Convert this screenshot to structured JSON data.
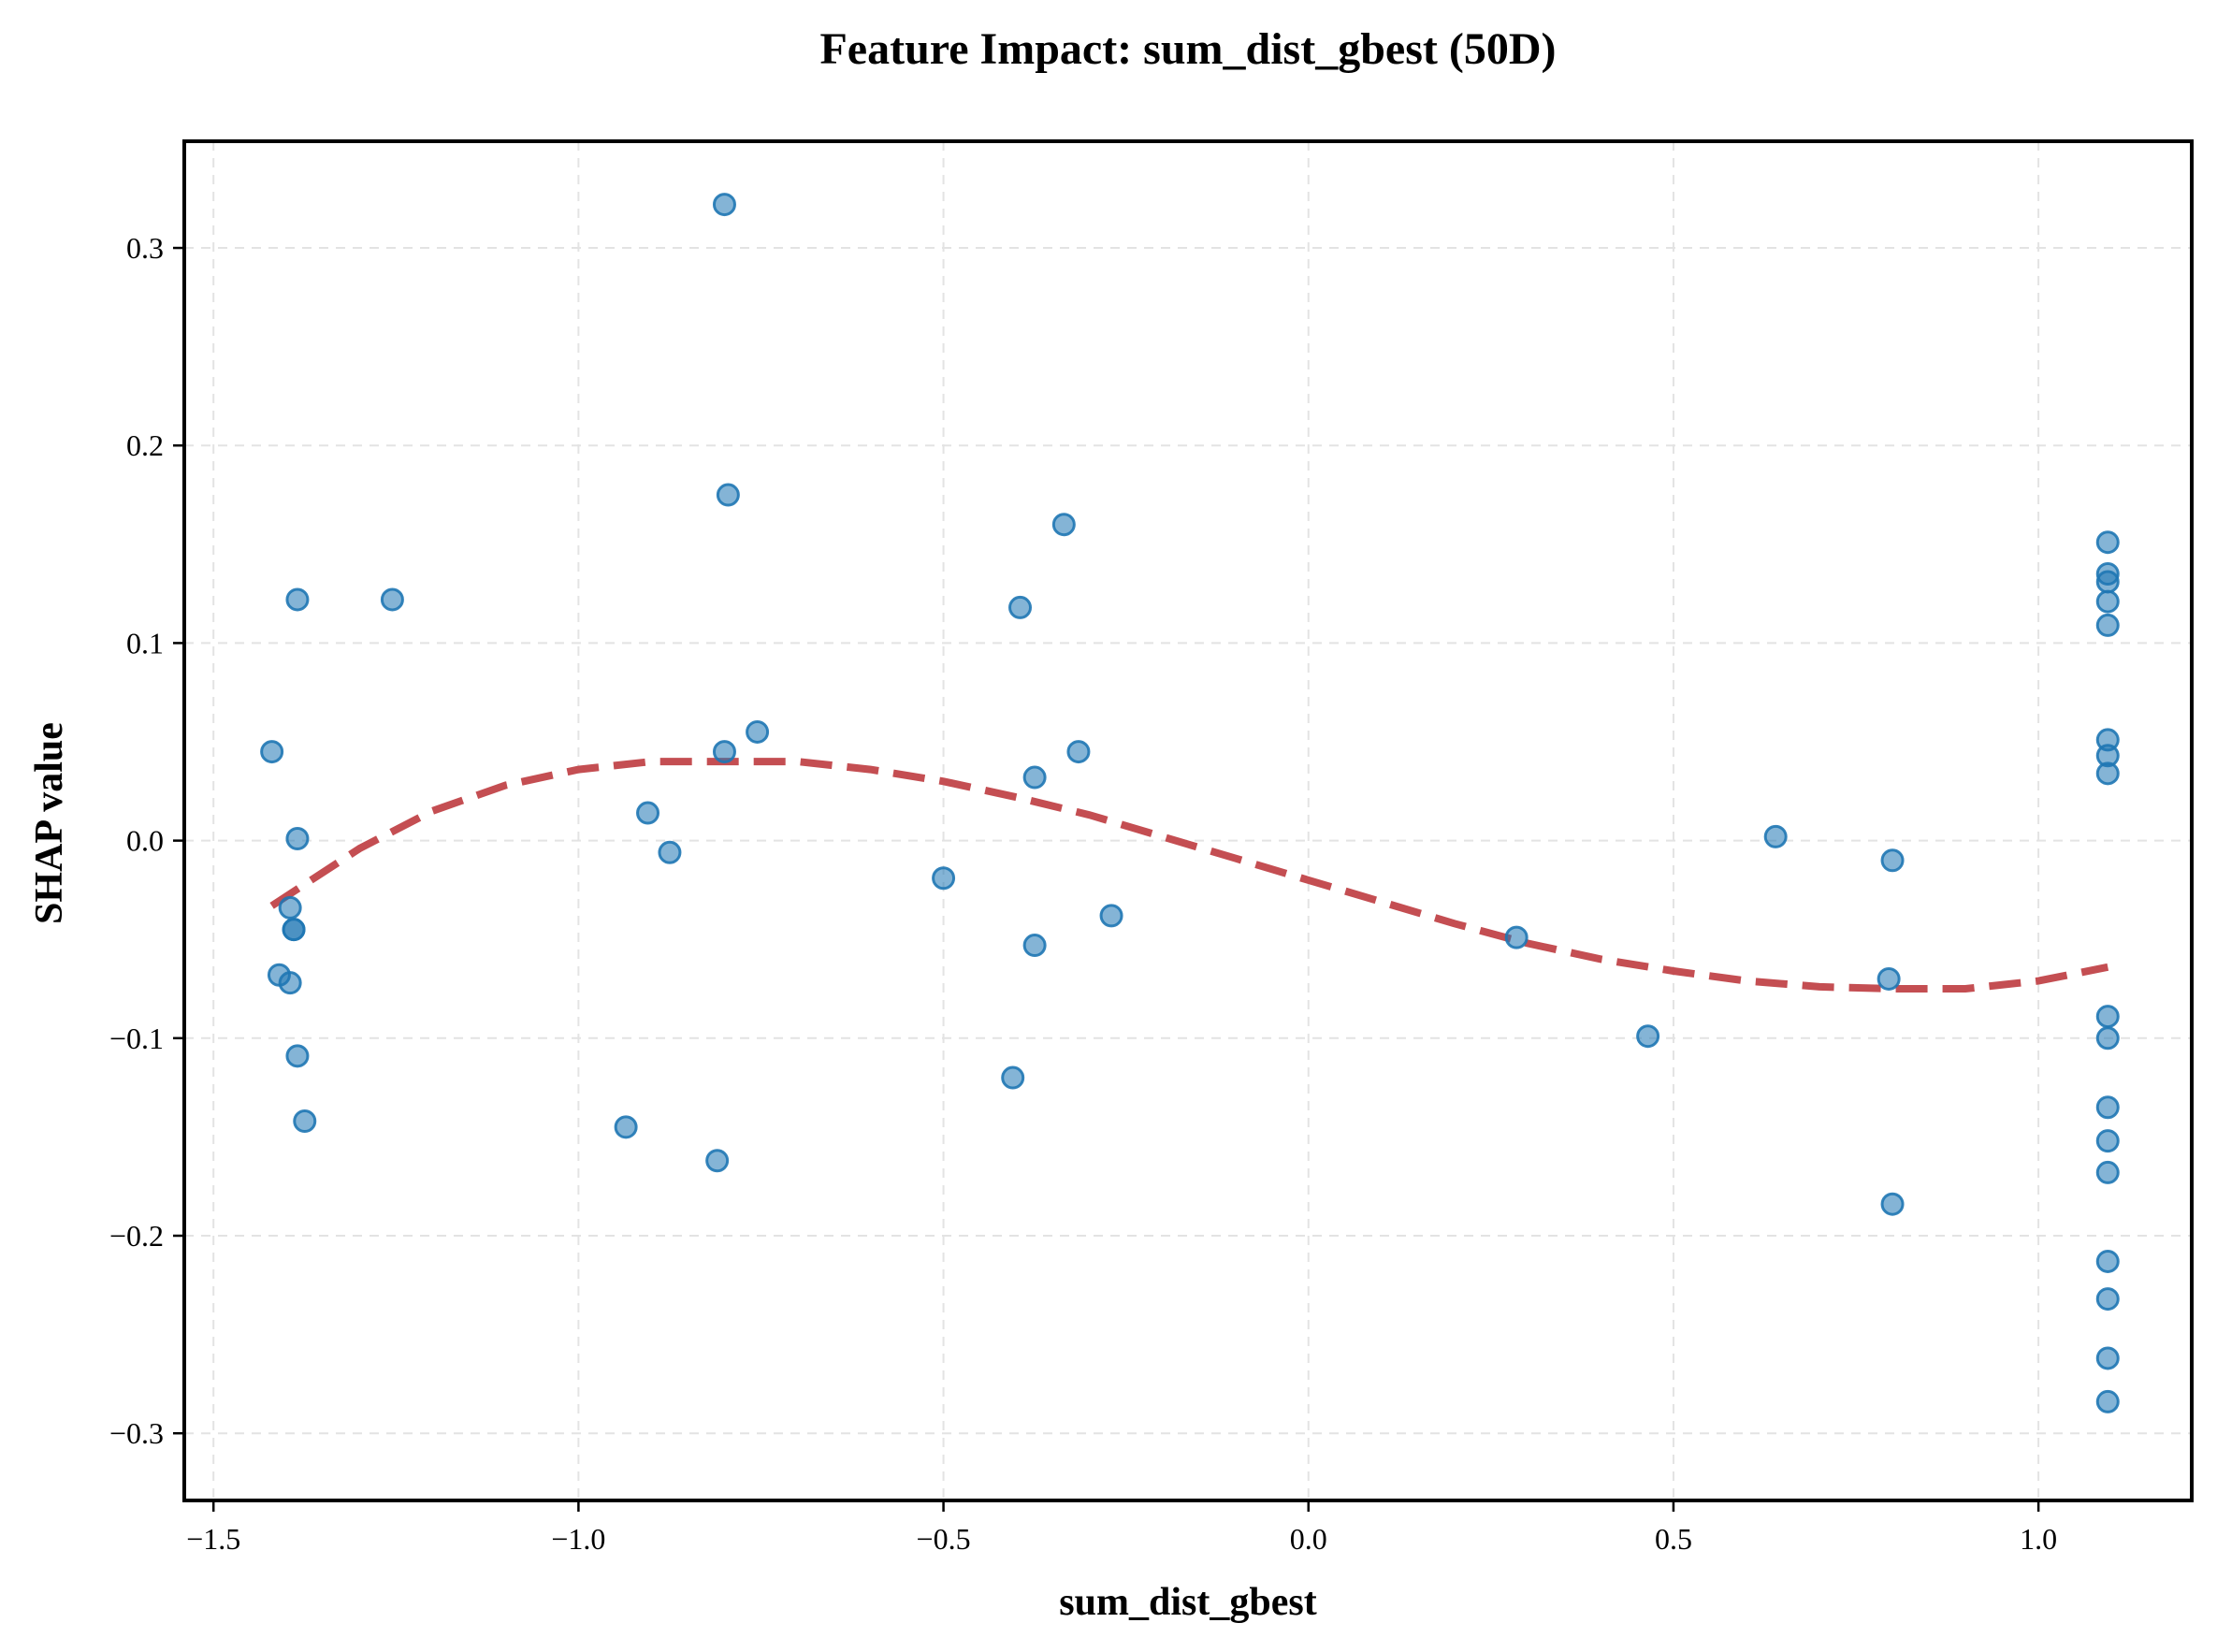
{
  "chart_data": {
    "type": "scatter",
    "title": "Feature Impact: sum_dist_gbest (50D)",
    "xlabel": "sum_dist_gbest",
    "ylabel": "SHAP value",
    "xlim": [
      -1.54,
      1.21
    ],
    "ylim": [
      -0.334,
      0.354
    ],
    "xticks": [
      -1.5,
      -1.0,
      -0.5,
      0.0,
      0.5,
      1.0
    ],
    "xtick_labels": [
      "−1.5",
      "−1.0",
      "−0.5",
      "0.0",
      "0.5",
      "1.0"
    ],
    "yticks": [
      -0.3,
      -0.2,
      -0.1,
      0.0,
      0.1,
      0.2,
      0.3
    ],
    "ytick_labels": [
      "−0.3",
      "−0.2",
      "−0.1",
      "0.0",
      "0.1",
      "0.2",
      "0.3"
    ],
    "grid": true,
    "point_color": "#1f77b4",
    "trend_color": "#c44e52",
    "series": [
      {
        "x": [
          -1.42,
          -1.385,
          -1.385,
          -1.41,
          -1.395,
          -1.39,
          -1.395,
          -1.385,
          -1.39,
          -1.375,
          -1.255,
          -0.935,
          -0.905,
          -0.875,
          -0.81,
          -0.8,
          -0.795,
          -0.8,
          -0.755,
          -0.5,
          -0.405,
          -0.395,
          -0.375,
          -0.375,
          -0.335,
          -0.315,
          -0.27,
          0.285,
          0.465,
          0.64,
          0.795,
          0.8,
          0.8,
          1.095,
          1.095,
          1.095,
          1.095,
          1.095,
          1.095,
          1.095,
          1.095,
          1.095,
          1.095,
          1.095,
          1.095,
          1.095,
          1.095,
          1.095,
          1.095,
          1.095
        ],
        "y": [
          0.045,
          0.122,
          0.001,
          -0.068,
          -0.034,
          -0.045,
          -0.072,
          -0.109,
          -0.045,
          -0.142,
          0.122,
          -0.145,
          0.014,
          -0.006,
          -0.162,
          0.045,
          0.175,
          0.322,
          0.055,
          -0.019,
          -0.12,
          0.118,
          -0.053,
          0.032,
          0.16,
          0.045,
          -0.038,
          -0.049,
          -0.099,
          0.002,
          -0.07,
          -0.01,
          -0.184,
          0.151,
          0.135,
          0.131,
          0.121,
          0.109,
          0.051,
          0.043,
          0.034,
          -0.089,
          -0.1,
          -0.135,
          -0.152,
          -0.168,
          -0.213,
          -0.232,
          -0.262,
          -0.284
        ]
      },
      {
        "type": "line",
        "x": [
          -1.42,
          -1.3,
          -1.2,
          -1.1,
          -1.0,
          -0.9,
          -0.8,
          -0.7,
          -0.6,
          -0.5,
          -0.4,
          -0.3,
          -0.2,
          -0.1,
          0.0,
          0.1,
          0.2,
          0.3,
          0.4,
          0.5,
          0.6,
          0.7,
          0.8,
          0.9,
          1.0,
          1.095
        ],
        "y": [
          -0.033,
          -0.004,
          0.015,
          0.028,
          0.036,
          0.04,
          0.04,
          0.04,
          0.036,
          0.03,
          0.022,
          0.013,
          0.002,
          -0.009,
          -0.02,
          -0.031,
          -0.042,
          -0.052,
          -0.06,
          -0.066,
          -0.071,
          -0.074,
          -0.075,
          -0.075,
          -0.071,
          -0.064
        ]
      }
    ]
  }
}
